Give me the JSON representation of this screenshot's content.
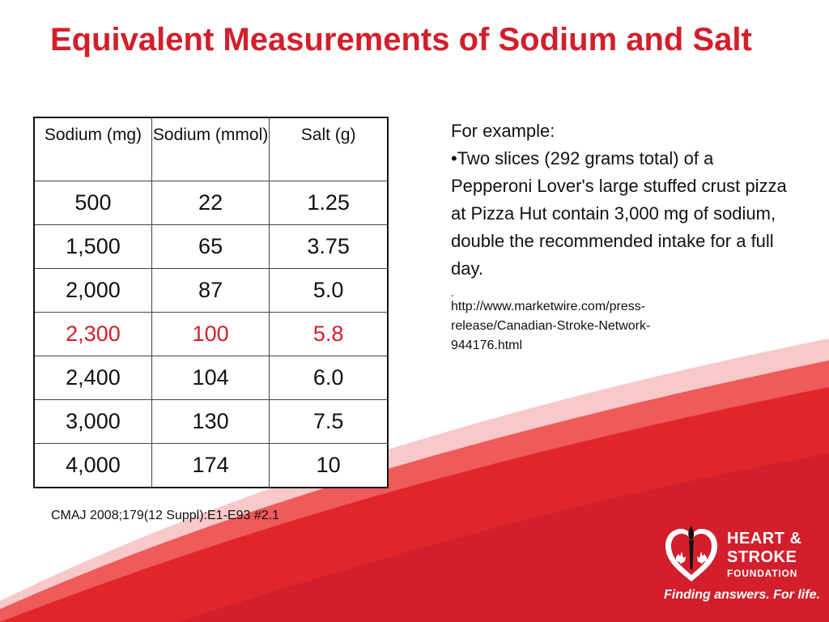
{
  "slide": {
    "title": "Equivalent Measurements of Sodium and Salt"
  },
  "table": {
    "headers": [
      "Sodium (mg)",
      "Sodium (mmol)",
      "Salt (g)"
    ],
    "rows": [
      [
        "500",
        "22",
        "1.25"
      ],
      [
        "1,500",
        "65",
        "3.75"
      ],
      [
        "2,000",
        "87",
        "5.0"
      ],
      [
        "2,300",
        "100",
        "5.8"
      ],
      [
        "2,400",
        "104",
        "6.0"
      ],
      [
        "3,000",
        "130",
        "7.5"
      ],
      [
        "4,000",
        "174",
        "10"
      ]
    ],
    "highlight_color": "#d21f2b"
  },
  "example": {
    "intro": "For example:",
    "bullet": "•Two slices (292 grams total) of a Pepperoni Lover's large stuffed crust pizza at Pizza Hut contain 3,000 mg of sodium, double the recommended intake for a full day.",
    "dot": ".",
    "link": " http://www.marketwire.com/press-release/Canadian-Stroke-Network-944176.html"
  },
  "citation": "CMAJ 2008;179(12 Suppl):E1-E93 #2.1",
  "logo": {
    "line1": "HEART &",
    "line2": "STROKE",
    "line3": "FOUNDATION",
    "tagline": "Finding answers. For life."
  },
  "colors": {
    "brand_red": "#d21f2b",
    "text": "#111111",
    "background": "#ffffff"
  }
}
